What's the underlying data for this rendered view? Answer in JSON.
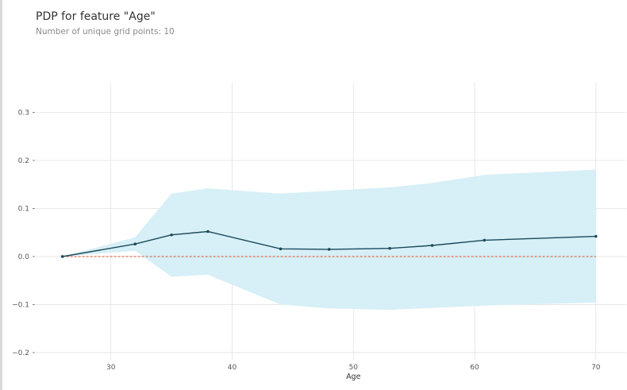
{
  "title": "PDP for feature \"Age\"",
  "subtitle": "Number of unique grid points: 10",
  "chart_data": {
    "type": "line",
    "xlabel": "Age",
    "ylabel": "",
    "xlim": [
      23.8,
      72.5
    ],
    "ylim": [
      -0.215,
      0.362
    ],
    "xticks": [
      30,
      40,
      50,
      60,
      70
    ],
    "yticks": [
      -0.2,
      -0.1,
      0.0,
      0.1,
      0.2,
      0.3
    ],
    "xtick_labels": [
      "30",
      "40",
      "50",
      "60",
      "70"
    ],
    "ytick_labels": [
      "−0.2",
      "−0.1",
      "0.0",
      "0.1",
      "0.2",
      "0.3"
    ],
    "grid": true,
    "series": [
      {
        "role": "pdp",
        "x": [
          26,
          32,
          35,
          38,
          44,
          48,
          53,
          56.5,
          60.8,
          70
        ],
        "y": [
          0.0,
          0.026,
          0.045,
          0.052,
          0.016,
          0.015,
          0.017,
          0.023,
          0.034,
          0.042
        ]
      }
    ],
    "band": {
      "x": [
        26,
        32,
        35,
        38,
        44,
        48,
        53,
        56.5,
        60.8,
        70
      ],
      "upper": [
        0.0,
        0.04,
        0.131,
        0.142,
        0.131,
        0.137,
        0.144,
        0.153,
        0.17,
        0.181
      ],
      "lower": [
        0.0,
        0.012,
        -0.042,
        -0.038,
        -0.1,
        -0.108,
        -0.111,
        -0.107,
        -0.102,
        -0.096
      ]
    },
    "baseline": 0.0,
    "colors": {
      "line": "#1a4a5c",
      "band": "#d7eff6",
      "baseline": "#d9532b",
      "grid": "#e3e3e3"
    }
  }
}
